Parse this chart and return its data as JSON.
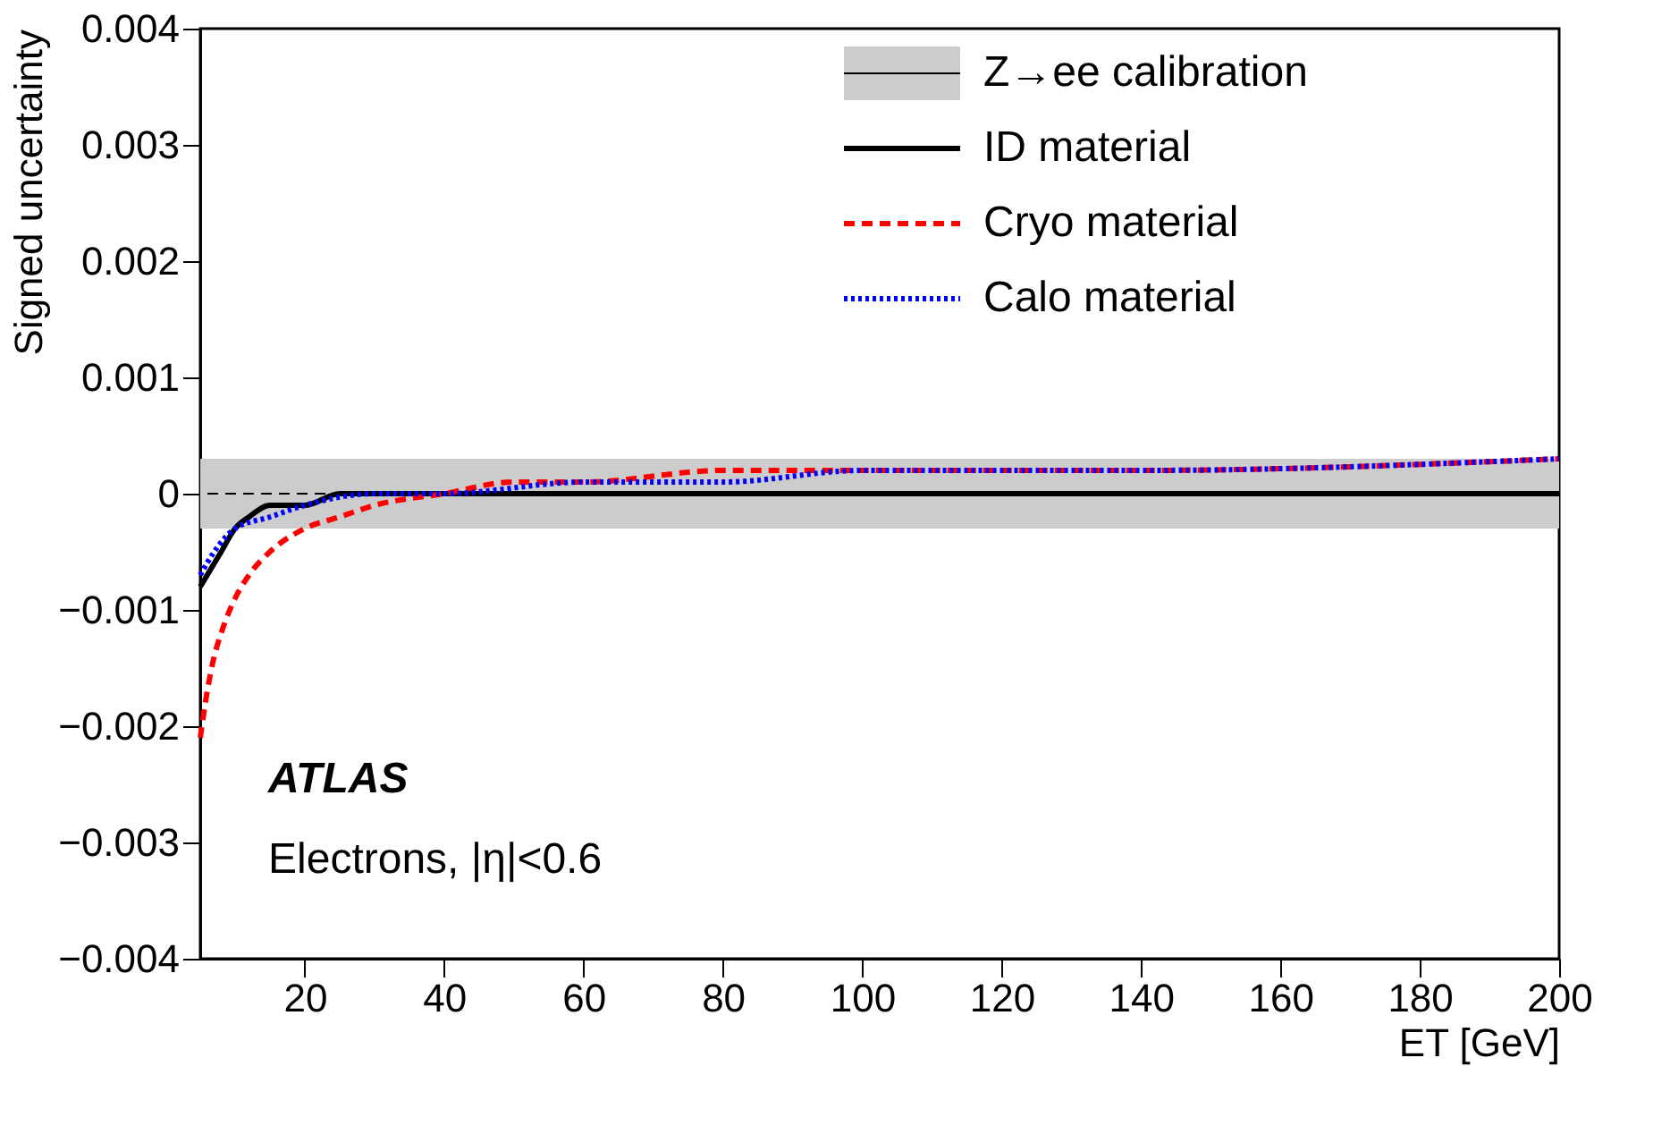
{
  "chart_data": {
    "type": "line",
    "xlabel": "ET [GeV]",
    "ylabel": "Signed uncertainty",
    "xlim": [
      5,
      200
    ],
    "xticks": [
      20,
      40,
      60,
      80,
      100,
      120,
      140,
      160,
      180,
      200
    ],
    "ylim": [
      -0.004,
      0.004
    ],
    "yticks": [
      -0.004,
      -0.003,
      -0.002,
      -0.001,
      0,
      0.001,
      0.002,
      0.003,
      0.004
    ],
    "grid": false,
    "legend": "top right",
    "marker": "none",
    "bands": [
      {
        "axis": "y",
        "from": -0.0003,
        "to": 0.0003,
        "label": "Z→ee calibration",
        "color": "#cccccc"
      }
    ],
    "ref_lines": [
      {
        "axis": "y",
        "value": 0,
        "color": "#000000",
        "line_style": "dashed"
      }
    ],
    "series": [
      {
        "name": "ID material",
        "color": "#000000",
        "line_style": "solid",
        "x": [
          5,
          6,
          7,
          8,
          10,
          12,
          15,
          20,
          25,
          30,
          40,
          60,
          80,
          100,
          140,
          200
        ],
        "values": [
          -0.0008,
          -0.0007,
          -0.0006,
          -0.0005,
          -0.0003,
          -0.0002,
          -0.0001,
          -0.0001,
          0,
          0,
          0,
          0,
          0,
          0,
          0,
          0
        ]
      },
      {
        "name": "Cryo material",
        "color": "#ff0000",
        "line_style": "dashed",
        "x": [
          5,
          6,
          7,
          8,
          10,
          12,
          15,
          20,
          25,
          30,
          40,
          50,
          60,
          80,
          100,
          140,
          200
        ],
        "values": [
          -0.0021,
          -0.0017,
          -0.0014,
          -0.0012,
          -0.0009,
          -0.0007,
          -0.0005,
          -0.0003,
          -0.0002,
          -0.0001,
          0,
          0.0001,
          0.0001,
          0.0002,
          0.0002,
          0.0002,
          0.0003
        ]
      },
      {
        "name": "Calo material",
        "color": "#0000ff",
        "line_style": "dotted",
        "x": [
          5,
          7,
          10,
          15,
          20,
          30,
          40,
          60,
          80,
          100,
          140,
          200
        ],
        "values": [
          -0.0007,
          -0.0005,
          -0.0003,
          -0.0002,
          -0.0001,
          0,
          0,
          0.0001,
          0.0001,
          0.0002,
          0.0002,
          0.0003
        ]
      }
    ],
    "annotations": [
      "ATLAS",
      "Electrons, |η|<0.6"
    ]
  }
}
